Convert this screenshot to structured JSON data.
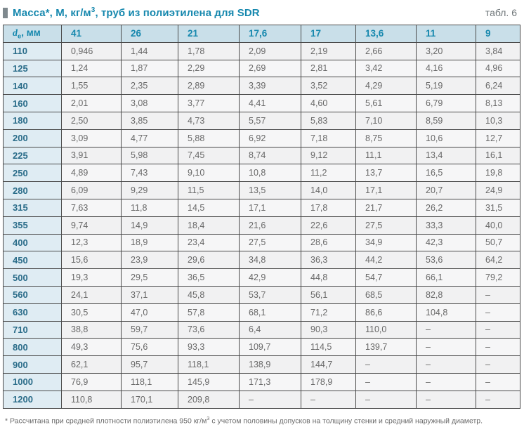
{
  "header": {
    "title_part1": "Масса*, М, кг/м",
    "title_sup": "3",
    "title_part2": ", труб из полиэтилена для SDR",
    "table_ref": "табл. 6"
  },
  "table": {
    "corner": {
      "d": "d",
      "sub": "e",
      "rest": ", мм"
    },
    "columns": [
      "41",
      "26",
      "21",
      "17,6",
      "17",
      "13,6",
      "11",
      "9"
    ],
    "rows": [
      {
        "d": "110",
        "values": [
          "0,946",
          "1,44",
          "1,78",
          "2,09",
          "2,19",
          "2,66",
          "3,20",
          "3,84"
        ]
      },
      {
        "d": "125",
        "values": [
          "1,24",
          "1,87",
          "2,29",
          "2,69",
          "2,81",
          "3,42",
          "4,16",
          "4,96"
        ]
      },
      {
        "d": "140",
        "values": [
          "1,55",
          "2,35",
          "2,89",
          "3,39",
          "3,52",
          "4,29",
          "5,19",
          "6,24"
        ]
      },
      {
        "d": "160",
        "values": [
          "2,01",
          "3,08",
          "3,77",
          "4,41",
          "4,60",
          "5,61",
          "6,79",
          "8,13"
        ]
      },
      {
        "d": "180",
        "values": [
          "2,50",
          "3,85",
          "4,73",
          "5,57",
          "5,83",
          "7,10",
          "8,59",
          "10,3"
        ]
      },
      {
        "d": "200",
        "values": [
          "3,09",
          "4,77",
          "5,88",
          "6,92",
          "7,18",
          "8,75",
          "10,6",
          "12,7"
        ]
      },
      {
        "d": "225",
        "values": [
          "3,91",
          "5,98",
          "7,45",
          "8,74",
          "9,12",
          "11,1",
          "13,4",
          "16,1"
        ]
      },
      {
        "d": "250",
        "values": [
          "4,89",
          "7,43",
          "9,10",
          "10,8",
          "11,2",
          "13,7",
          "16,5",
          "19,8"
        ]
      },
      {
        "d": "280",
        "values": [
          "6,09",
          "9,29",
          "11,5",
          "13,5",
          "14,0",
          "17,1",
          "20,7",
          "24,9"
        ]
      },
      {
        "d": "315",
        "values": [
          "7,63",
          "11,8",
          "14,5",
          "17,1",
          "17,8",
          "21,7",
          "26,2",
          "31,5"
        ]
      },
      {
        "d": "355",
        "values": [
          "9,74",
          "14,9",
          "18,4",
          "21,6",
          "22,6",
          "27,5",
          "33,3",
          "40,0"
        ]
      },
      {
        "d": "400",
        "values": [
          "12,3",
          "18,9",
          "23,4",
          "27,5",
          "28,6",
          "34,9",
          "42,3",
          "50,7"
        ]
      },
      {
        "d": "450",
        "values": [
          "15,6",
          "23,9",
          "29,6",
          "34,8",
          "36,3",
          "44,2",
          "53,6",
          "64,2"
        ]
      },
      {
        "d": "500",
        "values": [
          "19,3",
          "29,5",
          "36,5",
          "42,9",
          "44,8",
          "54,7",
          "66,1",
          "79,2"
        ]
      },
      {
        "d": "560",
        "values": [
          "24,1",
          "37,1",
          "45,8",
          "53,7",
          "56,1",
          "68,5",
          "82,8",
          "–"
        ]
      },
      {
        "d": "630",
        "values": [
          "30,5",
          "47,0",
          "57,8",
          "68,1",
          "71,2",
          "86,6",
          "104,8",
          "–"
        ]
      },
      {
        "d": "710",
        "values": [
          "38,8",
          "59,7",
          "73,6",
          "6,4",
          "90,3",
          "110,0",
          "–",
          "–"
        ]
      },
      {
        "d": "800",
        "values": [
          "49,3",
          "75,6",
          "93,3",
          "109,7",
          "114,5",
          "139,7",
          "–",
          "–"
        ]
      },
      {
        "d": "900",
        "values": [
          "62,1",
          "95,7",
          "118,1",
          "138,9",
          "144,7",
          "–",
          "–",
          "–"
        ]
      },
      {
        "d": "1000",
        "values": [
          "76,9",
          "118,1",
          "145,9",
          "171,3",
          "178,9",
          "–",
          "–",
          "–"
        ]
      },
      {
        "d": "1200",
        "values": [
          "110,8",
          "170,1",
          "209,8",
          "–",
          "–",
          "–",
          "–",
          "–"
        ]
      }
    ]
  },
  "footnote": {
    "part1": "* Рассчитана при средней плотности полиэтилена 950 кг/м",
    "sup": "3",
    "part2": " с учетом половины допусков на толщину стенки и средний наружный диаметр."
  },
  "colors": {
    "accent_teal": "#1688ae",
    "header_bg": "#c9dfe9",
    "first_col_bg": "#dfecf3",
    "first_col_text": "#2a6c89",
    "border": "#4a4a4a",
    "data_text": "#686868",
    "accent_bar_gray": "#7f898e"
  }
}
